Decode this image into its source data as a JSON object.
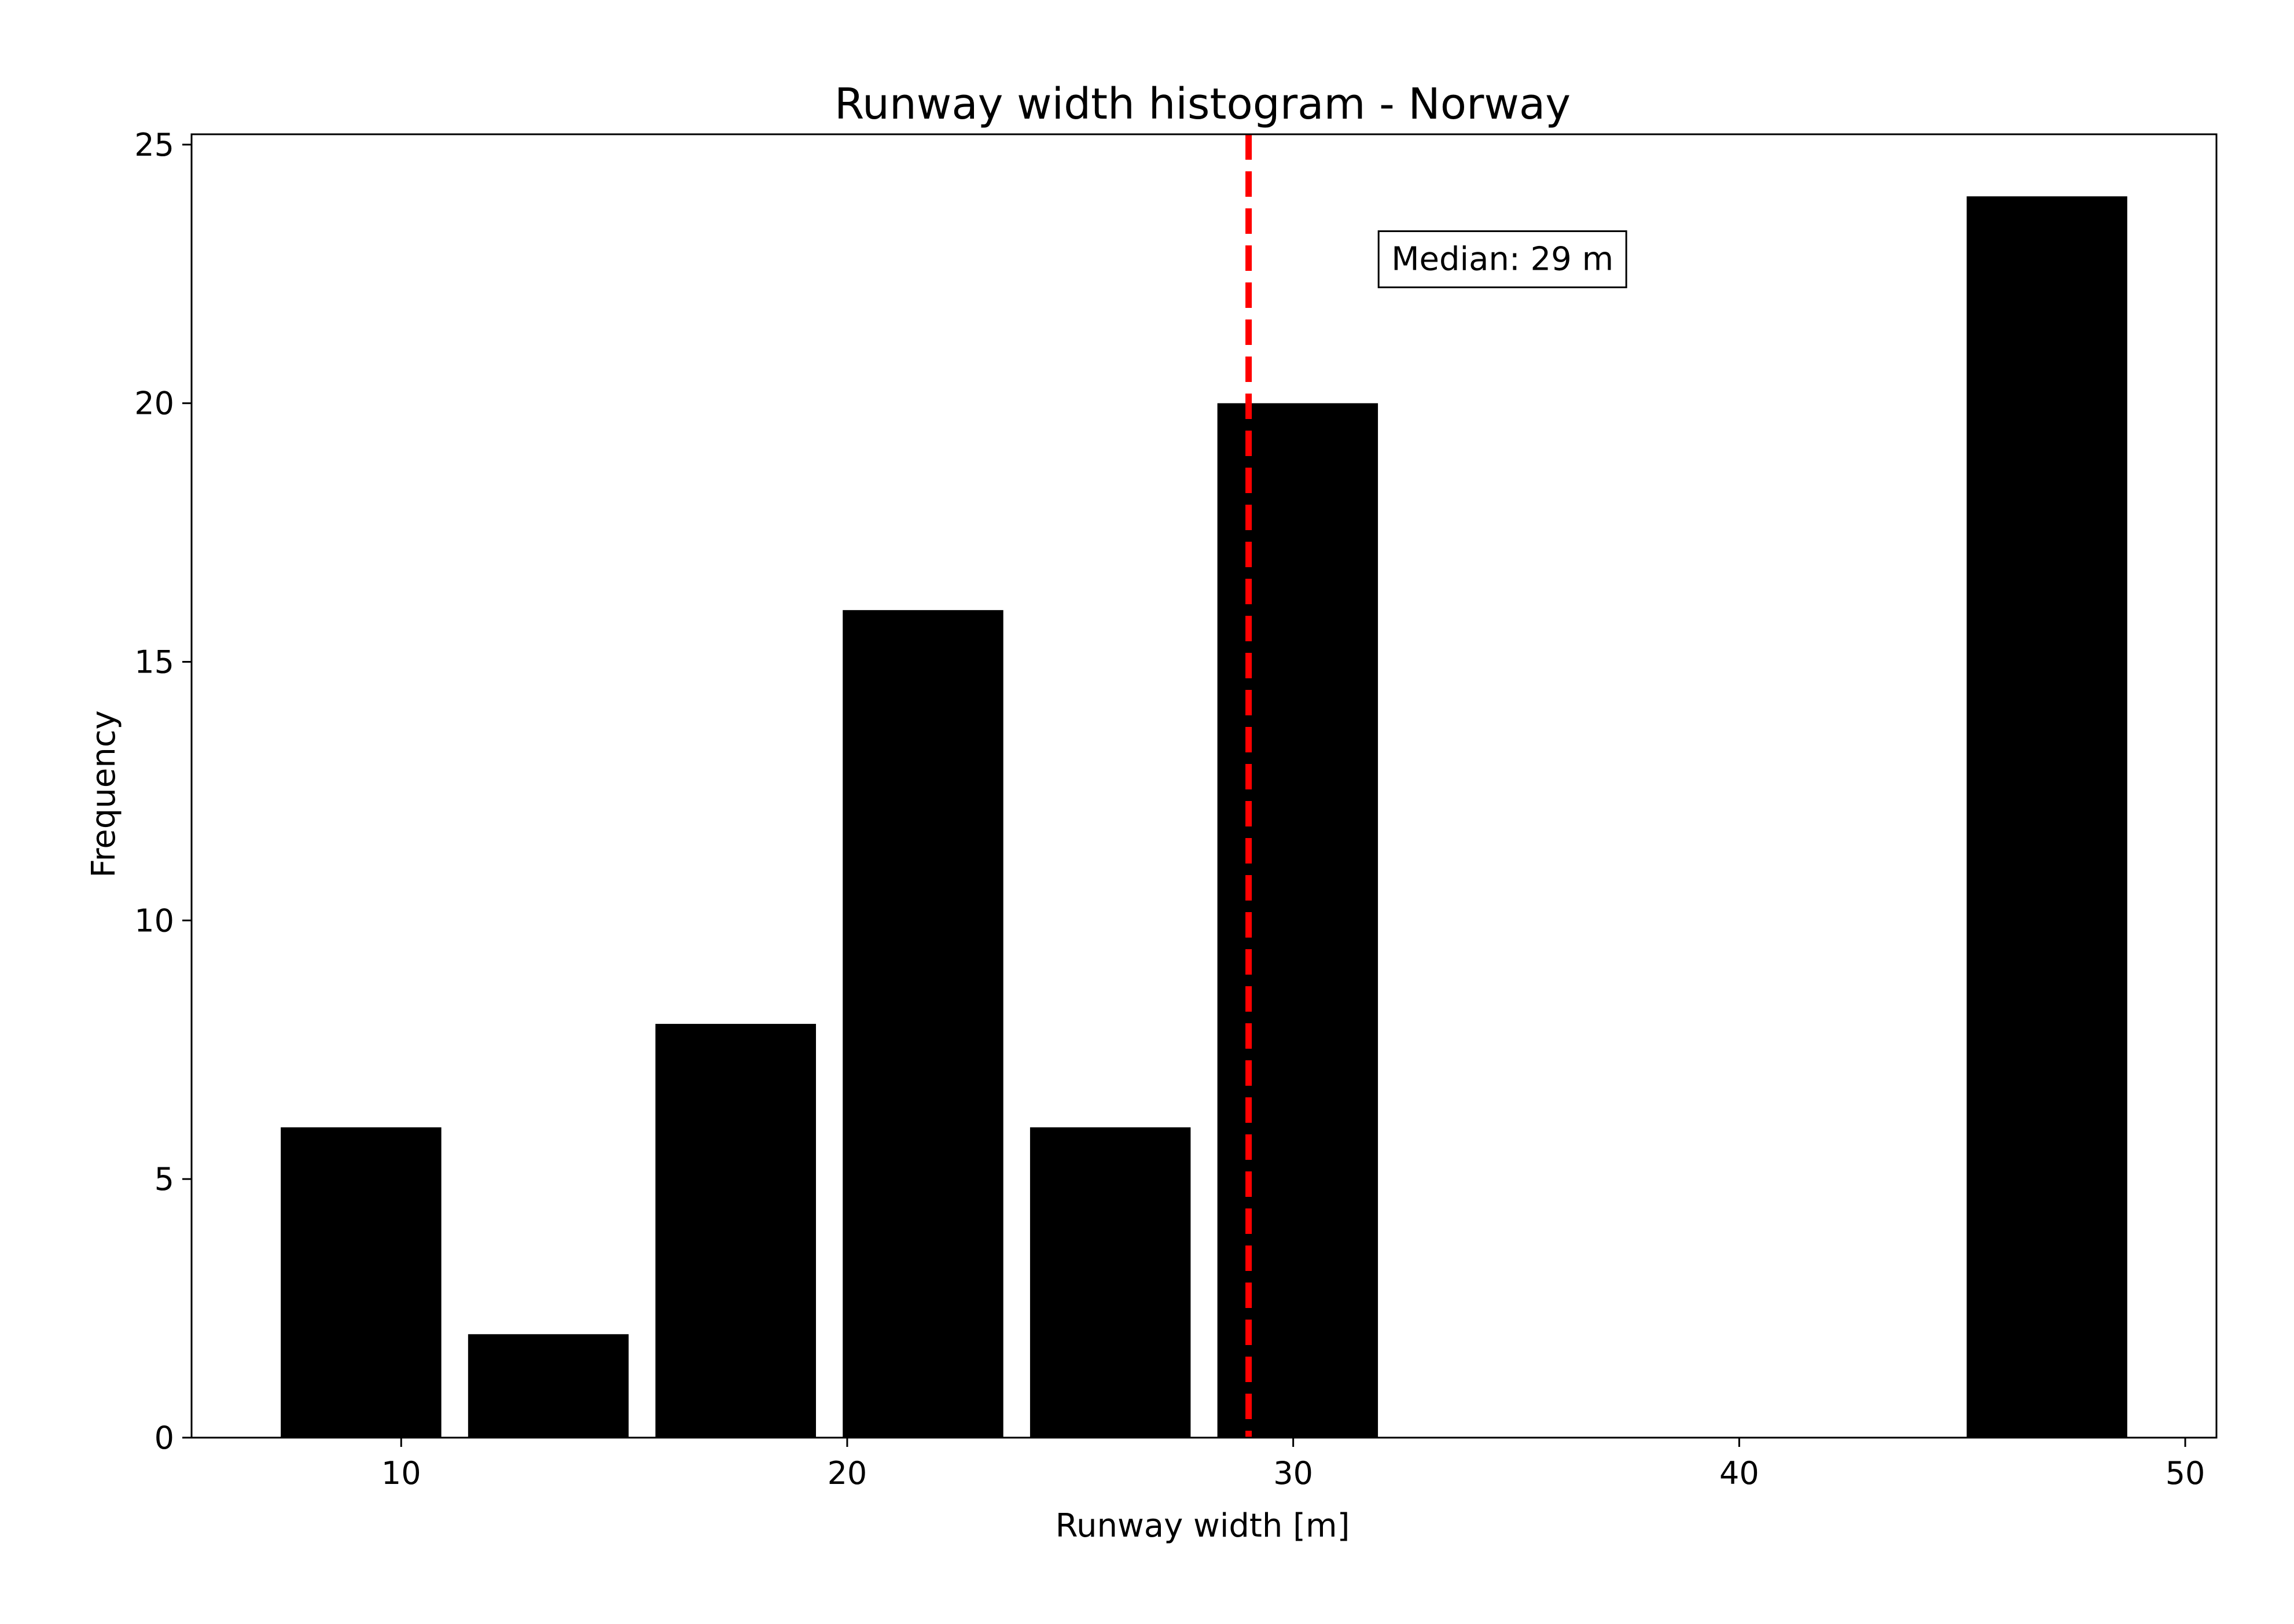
{
  "chart_data": {
    "type": "bar",
    "title": "Runway width histogram - Norway",
    "xlabel": "Runway width [m]",
    "ylabel": "Frequency",
    "xlim": [
      5.3,
      50.7
    ],
    "ylim": [
      0,
      25.2
    ],
    "xticks": [
      10,
      20,
      30,
      40,
      50
    ],
    "yticks": [
      0,
      5,
      10,
      15,
      20,
      25
    ],
    "bins": [
      {
        "start": 7.3,
        "end": 10.9,
        "value": 6
      },
      {
        "start": 11.5,
        "end": 15.1,
        "value": 2
      },
      {
        "start": 15.7,
        "end": 19.3,
        "value": 8
      },
      {
        "start": 19.9,
        "end": 23.5,
        "value": 16
      },
      {
        "start": 24.1,
        "end": 27.7,
        "value": 6
      },
      {
        "start": 28.3,
        "end": 31.9,
        "value": 20
      },
      {
        "start": 45.1,
        "end": 48.7,
        "value": 24
      }
    ],
    "bar_color": "#000000",
    "median_line": {
      "value": 29,
      "color": "#ff0000",
      "style": "dashed"
    },
    "annotation": {
      "text": "Median: 29 m",
      "x": 32.2,
      "y": 22.8
    }
  }
}
